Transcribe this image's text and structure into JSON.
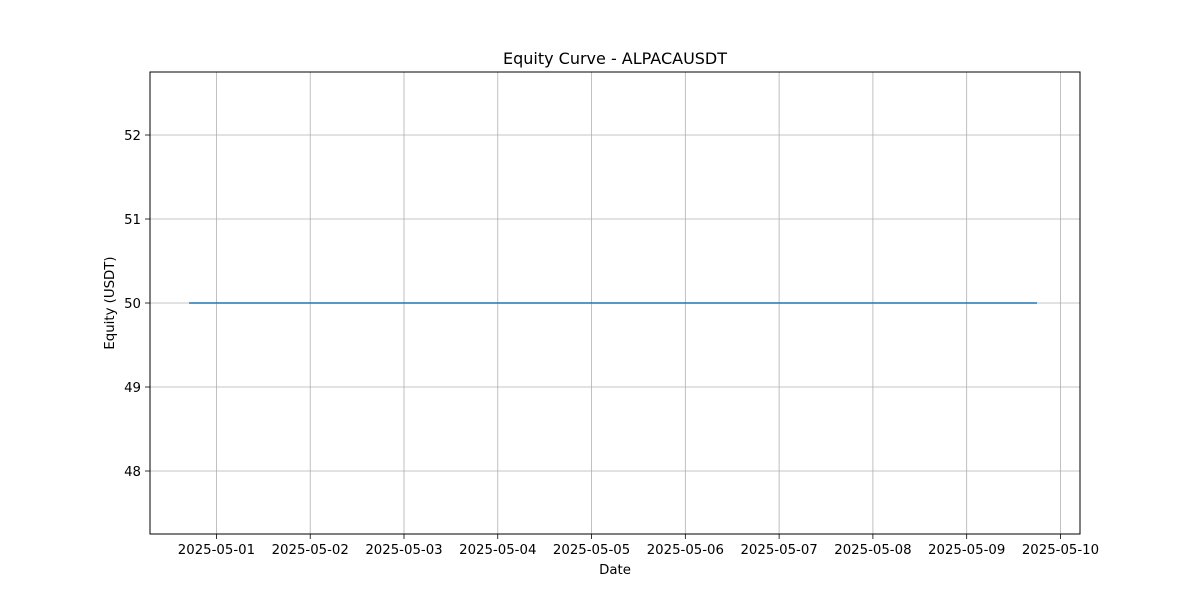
{
  "chart_data": {
    "type": "line",
    "title": "Equity Curve - ALPACAUSDT",
    "xlabel": "Date",
    "ylabel": "Equity (USDT)",
    "x_ticks": [
      "2025-05-01",
      "2025-05-02",
      "2025-05-03",
      "2025-05-04",
      "2025-05-05",
      "2025-05-06",
      "2025-05-07",
      "2025-05-08",
      "2025-05-09",
      "2025-05-10"
    ],
    "y_ticks": [
      48,
      49,
      50,
      51,
      52
    ],
    "xlim": [
      "2025-04-30 07:00",
      "2025-05-10 05:00"
    ],
    "ylim": [
      47.25,
      52.75
    ],
    "grid": true,
    "series": [
      {
        "color": "#1f77b4",
        "x": [
          "2025-04-30 17:00",
          "2025-05-09 18:00"
        ],
        "y": [
          50,
          50
        ]
      }
    ]
  }
}
